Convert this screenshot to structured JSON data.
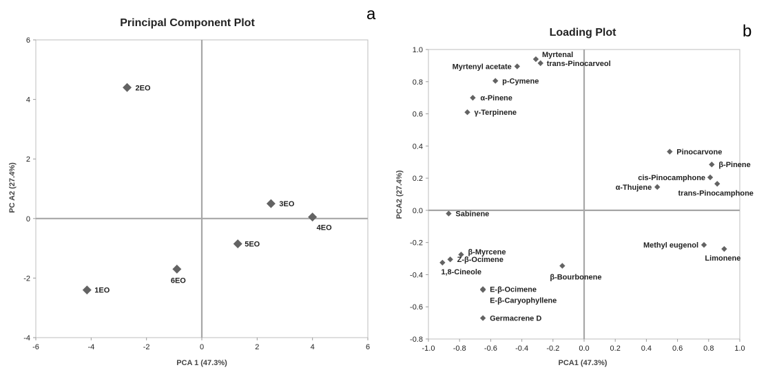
{
  "chart_data": [
    {
      "type": "scatter",
      "title": "Principal Component Plot",
      "panel_label": "a",
      "xlabel": "PCA 1 (47.3%)",
      "ylabel": "PC A2 (27.4%)",
      "xlim": [
        -6,
        6
      ],
      "ylim": [
        -4,
        6
      ],
      "xticks": [
        -6,
        -4,
        -2,
        0,
        2,
        4,
        6
      ],
      "yticks": [
        -4,
        -2,
        0,
        2,
        4,
        6
      ],
      "grid": false,
      "marker_color": "#636363",
      "points": [
        {
          "label": "2EO",
          "x": -2.7,
          "y": 4.4
        },
        {
          "label": "3EO",
          "x": 2.5,
          "y": 0.5
        },
        {
          "label": "4EO",
          "x": 4.0,
          "y": 0.05
        },
        {
          "label": "5EO",
          "x": 1.3,
          "y": -0.85
        },
        {
          "label": "6EO",
          "x": -0.9,
          "y": -1.7
        },
        {
          "label": "1EO",
          "x": -4.15,
          "y": -2.4
        }
      ]
    },
    {
      "type": "scatter",
      "title": "Loading Plot",
      "panel_label": "b",
      "xlabel": "PCA1 (47.3%)",
      "ylabel": "PCA2 (27.4%)",
      "xlim": [
        -1.0,
        1.0
      ],
      "ylim": [
        -0.8,
        1.0
      ],
      "xticks": [
        "-1.0",
        "-0.8",
        "-0.6",
        "-0.4",
        "-0.2",
        "0.0",
        "0.2",
        "0.4",
        "0.6",
        "0.8",
        "1.0"
      ],
      "yticks": [
        "-0.8",
        "-0.6",
        "-0.4",
        "-0.2",
        "0.0",
        "0.2",
        "0.4",
        "0.6",
        "0.8",
        "1.0"
      ],
      "grid": false,
      "marker_color": "#636363",
      "points": [
        {
          "label": "Myrtenal",
          "x": -0.31,
          "y": 0.94
        },
        {
          "label": "trans-Pinocarveol",
          "x": -0.28,
          "y": 0.915
        },
        {
          "label": "Myrtenyl acetate",
          "x": -0.43,
          "y": 0.895
        },
        {
          "label": "p-Cymene",
          "x": -0.57,
          "y": 0.805
        },
        {
          "label": "α-Pinene",
          "x": -0.715,
          "y": 0.7
        },
        {
          "label": "γ-Terpinene",
          "x": -0.75,
          "y": 0.61
        },
        {
          "label": "Pinocarvone",
          "x": 0.55,
          "y": 0.365
        },
        {
          "label": "β-Pinene",
          "x": 0.82,
          "y": 0.285
        },
        {
          "label": "cis-Pinocamphone",
          "x": 0.81,
          "y": 0.205
        },
        {
          "label": "α-Thujene",
          "x": 0.47,
          "y": 0.145
        },
        {
          "label": "trans-Pinocamphone",
          "x": 0.855,
          "y": 0.165
        },
        {
          "label": "Sabinene",
          "x": -0.87,
          "y": -0.02
        },
        {
          "label": "Methyl eugenol",
          "x": 0.77,
          "y": -0.215
        },
        {
          "label": "Limonene",
          "x": 0.9,
          "y": -0.24
        },
        {
          "label": "β-Myrcene",
          "x": -0.79,
          "y": -0.275
        },
        {
          "label": "Z-β-Ocimene",
          "x": -0.86,
          "y": -0.305
        },
        {
          "label": "1,8-Cineole",
          "x": -0.91,
          "y": -0.325
        },
        {
          "label": "β-Bourbonene",
          "x": -0.14,
          "y": -0.345
        },
        {
          "label": "E-β-Ocimene",
          "x": -0.65,
          "y": -0.49
        },
        {
          "label": "E-β-Caryophyllene",
          "x": -0.65,
          "y": -0.495
        },
        {
          "label": "Germacrene D",
          "x": -0.65,
          "y": -0.67
        }
      ]
    }
  ]
}
